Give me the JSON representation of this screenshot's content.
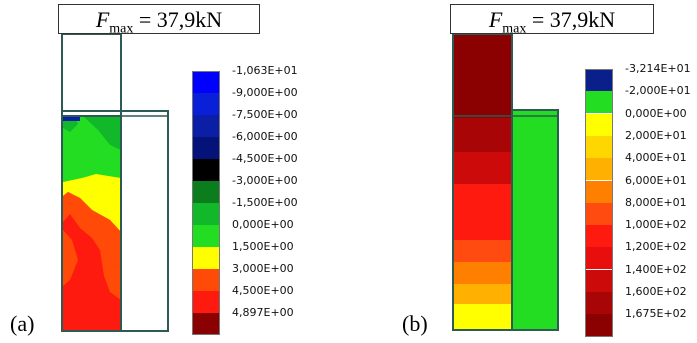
{
  "panels": [
    {
      "id": "a",
      "letter": "(a)",
      "title": {
        "symbol": "F",
        "subscript": "max",
        "rest": " = 37,9kN"
      },
      "legend": [
        {
          "label": "-1,063E+01",
          "color": "#0000ff"
        },
        {
          "label": "-9,000E+00",
          "color": "#0a1fd8"
        },
        {
          "label": "-7,500E+00",
          "color": "#0b1fa6"
        },
        {
          "label": "-6,000E+00",
          "color": "#04127a"
        },
        {
          "label": "-4,500E+00",
          "color": "#000000"
        },
        {
          "label": "-3,000E+00",
          "color": "#0b7d1d"
        },
        {
          "label": "-1,500E+00",
          "color": "#11b82a"
        },
        {
          "label": "0,000E+00",
          "color": "#22dd22"
        },
        {
          "label": "1,500E+00",
          "color": "#ffff00"
        },
        {
          "label": "3,000E+00",
          "color": "#ff4a08"
        },
        {
          "label": "4,500E+00",
          "color": "#ff1a10"
        },
        {
          "label": "4,897E+00",
          "color": "#8b0000"
        }
      ]
    },
    {
      "id": "b",
      "letter": "(b)",
      "title": {
        "symbol": "F",
        "subscript": "max",
        "rest": " = 37,9kN"
      },
      "legend": [
        {
          "label": "-3,214E+01",
          "color": "#0a1f8a"
        },
        {
          "label": "-2,000E+01",
          "color": "#22dd22"
        },
        {
          "label": "0,000E+00",
          "color": "#ffff00"
        },
        {
          "label": "2,000E+01",
          "color": "#ffd700"
        },
        {
          "label": "4,000E+01",
          "color": "#ffb000"
        },
        {
          "label": "6,000E+01",
          "color": "#ff8000"
        },
        {
          "label": "8,000E+01",
          "color": "#ff4a10"
        },
        {
          "label": "1,000E+02",
          "color": "#ff1a10"
        },
        {
          "label": "1,200E+02",
          "color": "#e80e0e"
        },
        {
          "label": "1,400E+02",
          "color": "#cc0a0a"
        },
        {
          "label": "1,600E+02",
          "color": "#a80606"
        },
        {
          "label": "1,675E+02",
          "color": "#8b0000"
        }
      ]
    }
  ]
}
